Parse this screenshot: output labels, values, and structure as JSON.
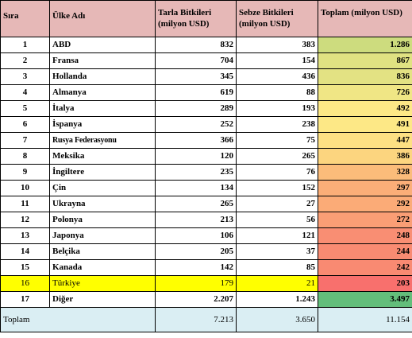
{
  "headers": {
    "rank": "Sıra",
    "country": "Ülke Adı",
    "field": "Tarla Bitkileri (milyon USD)",
    "vegetable": "Sebze Bitkileri (milyon USD)",
    "total": "Toplam (milyon USD)"
  },
  "rows": [
    {
      "rank": "1",
      "country": "ABD",
      "field": "832",
      "vegetable": "383",
      "total": "1.286",
      "color": "#cddc7e"
    },
    {
      "rank": "2",
      "country": "Fransa",
      "field": "704",
      "vegetable": "154",
      "total": "867",
      "color": "#e0e282"
    },
    {
      "rank": "3",
      "country": "Hollanda",
      "field": "345",
      "vegetable": "436",
      "total": "836",
      "color": "#e3e283"
    },
    {
      "rank": "4",
      "country": "Almanya",
      "field": "619",
      "vegetable": "88",
      "total": "726",
      "color": "#f0e685"
    },
    {
      "rank": "5",
      "country": "İtalya",
      "field": "289",
      "vegetable": "193",
      "total": "492",
      "color": "#fde886"
    },
    {
      "rank": "6",
      "country": "İspanya",
      "field": "252",
      "vegetable": "238",
      "total": "491",
      "color": "#fde886"
    },
    {
      "rank": "7",
      "country": "Rusya Federasyonu",
      "field": "366",
      "vegetable": "75",
      "total": "447",
      "color": "#fde083"
    },
    {
      "rank": "8",
      "country": "Meksika",
      "field": "120",
      "vegetable": "265",
      "total": "386",
      "color": "#fcd57f"
    },
    {
      "rank": "9",
      "country": "İngiltere",
      "field": "235",
      "vegetable": "76",
      "total": "328",
      "color": "#fbbc7a"
    },
    {
      "rank": "10",
      "country": "Çin",
      "field": "134",
      "vegetable": "152",
      "total": "297",
      "color": "#fbae78"
    },
    {
      "rank": "11",
      "country": "Ukrayna",
      "field": "265",
      "vegetable": "27",
      "total": "292",
      "color": "#fbab77"
    },
    {
      "rank": "12",
      "country": "Polonya",
      "field": "213",
      "vegetable": "56",
      "total": "272",
      "color": "#fa9e75"
    },
    {
      "rank": "13",
      "country": "Japonya",
      "field": "106",
      "vegetable": "121",
      "total": "248",
      "color": "#f98e73"
    },
    {
      "rank": "14",
      "country": "Belçika",
      "field": "205",
      "vegetable": "37",
      "total": "244",
      "color": "#f98b72"
    },
    {
      "rank": "15",
      "country": "Kanada",
      "field": "142",
      "vegetable": "85",
      "total": "242",
      "color": "#f98a72"
    },
    {
      "rank": "16",
      "country": "Türkiye",
      "field": "179",
      "vegetable": "21",
      "total": "203",
      "color": "#f8706d",
      "highlight": true
    },
    {
      "rank": "17",
      "country": "Diğer",
      "field": "2.207",
      "vegetable": "1.243",
      "total": "3.497",
      "color": "#63be7b"
    }
  ],
  "footer": {
    "label": "Toplam",
    "field": "7.213",
    "vegetable": "3.650",
    "total": "11.154"
  },
  "colors": {
    "header_bg": "#e6b8b7",
    "footer_bg": "#daeef3",
    "highlight_bg": "#ffff00"
  }
}
